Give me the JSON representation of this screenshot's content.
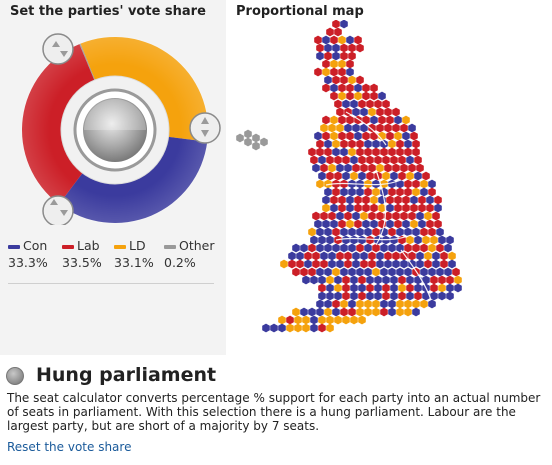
{
  "left_heading": "Set the parties' vote share",
  "right_heading": "Proportional map",
  "parties": [
    {
      "name": "Con",
      "value": 33.3,
      "value_label": "33.3%",
      "color": "#3b3b9e"
    },
    {
      "name": "Lab",
      "value": 33.5,
      "value_label": "33.5%",
      "color": "#cc1f27"
    },
    {
      "name": "LD",
      "value": 33.1,
      "value_label": "33.1%",
      "color": "#f5a20d"
    },
    {
      "name": "Other",
      "value": 0.2,
      "value_label": "0.2%",
      "color": "#999999"
    }
  ],
  "result": {
    "title": "Hung parliament",
    "description": "The seat calculator converts percentage % support for each party into an actual number of seats in parliament. With this selection there is a hung parliament. Labour are the largest party, but are short of a majority by 7 seats.",
    "reset_label": "Reset the vote share"
  }
}
